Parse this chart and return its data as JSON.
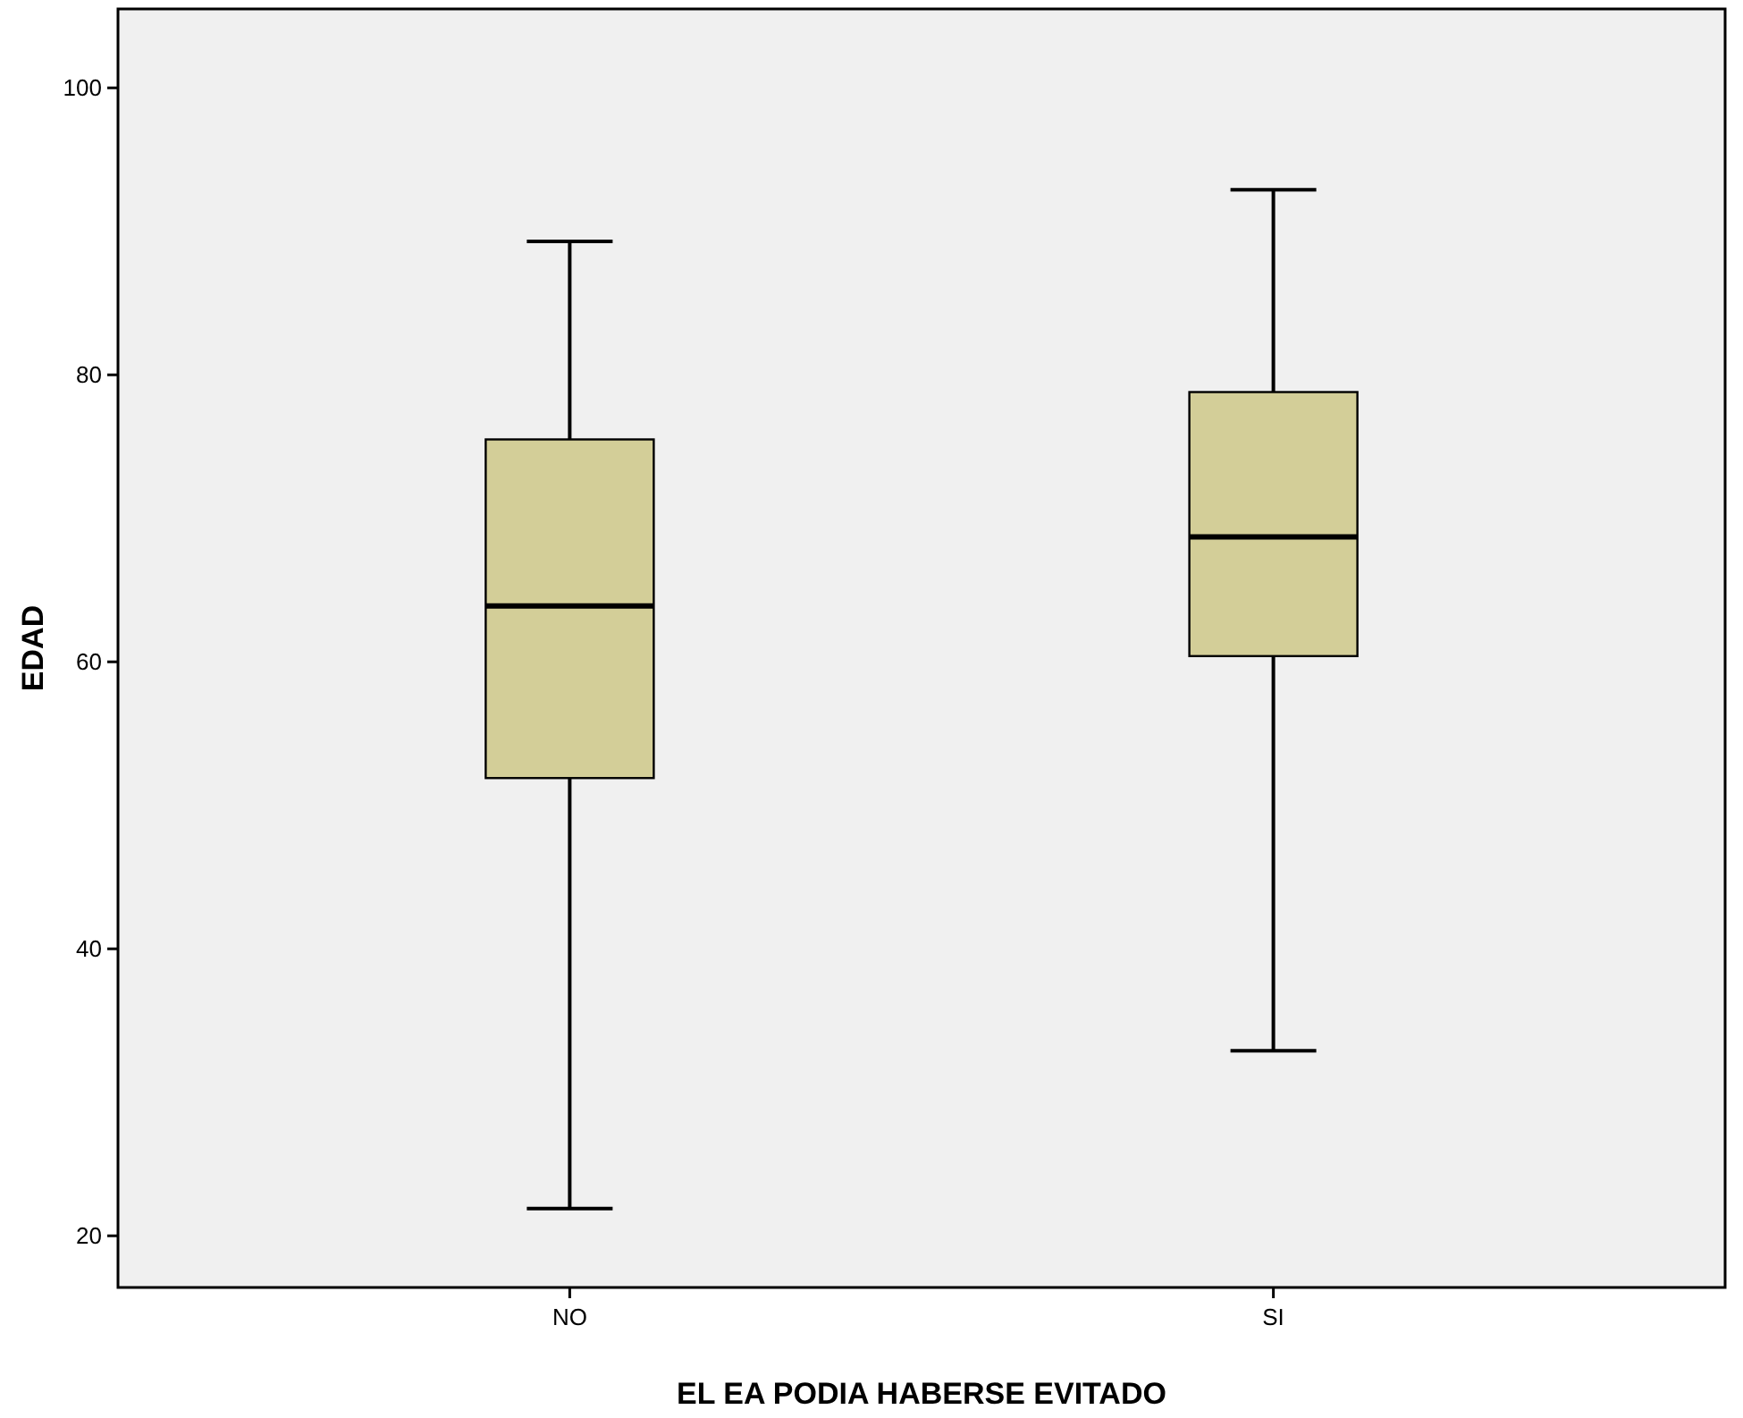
{
  "chart_data": {
    "type": "box",
    "xlabel": "EL EA PODIA HABERSE EVITADO",
    "ylabel": "EDAD",
    "categories": [
      "NO",
      "SI"
    ],
    "boxes": [
      {
        "low": 21.9,
        "q1": 51.9,
        "median": 63.9,
        "q3": 75.5,
        "high": 89.3
      },
      {
        "low": 32.9,
        "q1": 60.4,
        "median": 68.7,
        "q3": 78.8,
        "high": 92.9
      }
    ],
    "color": "#d3ce98",
    "ylim": [
      16.4,
      105.5
    ],
    "yticks": [
      20,
      40,
      60,
      80,
      100
    ],
    "grid": false
  }
}
